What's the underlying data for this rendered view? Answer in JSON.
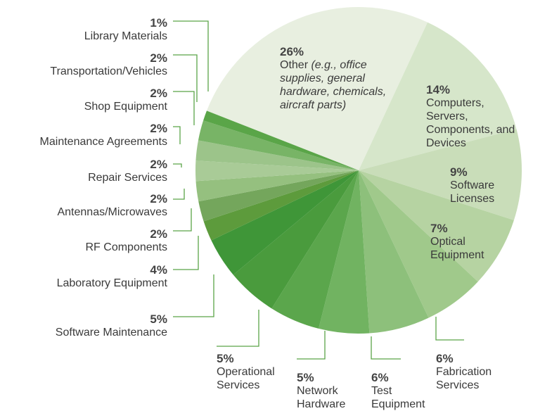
{
  "chart_data": {
    "type": "pie",
    "categories": [
      "Other (e.g., office supplies, general hardware, chemicals, aircraft parts)",
      "Computers, Servers, Components, and Devices",
      "Software Licenses",
      "Optical Equipment",
      "Fabrication Services",
      "Test Equipment",
      "Network Hardware",
      "Operational Services",
      "Software Maintenance",
      "Laboratory Equipment",
      "RF Components",
      "Antennas/Microwaves",
      "Repair Services",
      "Maintenance Agreements",
      "Shop Equipment",
      "Transportation/Vehicles",
      "Library Materials"
    ],
    "values": [
      26,
      14,
      9,
      7,
      6,
      6,
      5,
      5,
      5,
      4,
      2,
      2,
      2,
      2,
      2,
      2,
      1
    ],
    "value_labels": [
      "26%",
      "14%",
      "9%",
      "7%",
      "6%",
      "6%",
      "5%",
      "5%",
      "5%",
      "4%",
      "2%",
      "2%",
      "2%",
      "2%",
      "2%",
      "2%",
      "1%"
    ],
    "colors": [
      "#e8efe0",
      "#d6e6ca",
      "#c9ddb9",
      "#b6d3a2",
      "#a0c98b",
      "#8dc07b",
      "#71b361",
      "#5ba64c",
      "#4a9b3d",
      "#3f9638",
      "#5d9b3c",
      "#74a65c",
      "#95c07f",
      "#a9cb97",
      "#9cc48a",
      "#78b466",
      "#5aa548"
    ]
  }
}
